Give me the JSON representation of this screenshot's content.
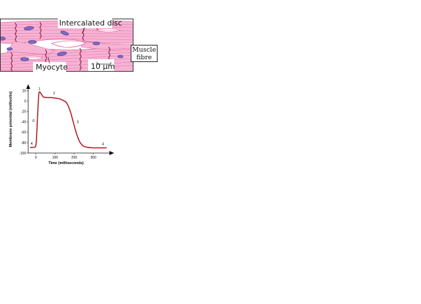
{
  "diagram": {
    "labels": {
      "intercalated_disc": "Intercalated disc",
      "myocyte": "Myocyte",
      "scale_bar": "10 µm",
      "muscle_fibre_line1": "Muscle",
      "muscle_fibre_line2": "fibre"
    },
    "colors": {
      "tissue_fill": "#f6b3d3",
      "fibril_lines": "#e2649f",
      "disc_lines": "#8e1b47",
      "nucleus": "#7f69c4",
      "nucleus_outline": "#4b3c8c",
      "border": "#333333"
    }
  },
  "chart_data": {
    "type": "line",
    "title": "",
    "xlabel": "Time (milliseconds)",
    "ylabel": "Membrane potential (millivolts)",
    "xlim": [
      -40,
      380
    ],
    "ylim": [
      -100,
      25
    ],
    "xticks": [
      0,
      100,
      200,
      300
    ],
    "yticks": [
      20,
      0,
      -20,
      -40,
      -60,
      -80,
      -100
    ],
    "grid": false,
    "line_color": "#b0151e",
    "series": [
      {
        "name": "",
        "x": [
          -30,
          -10,
          0,
          5,
          10,
          15,
          20,
          30,
          40,
          60,
          80,
          100,
          120,
          140,
          150,
          160,
          170,
          180,
          190,
          200,
          210,
          220,
          230,
          240,
          250,
          270,
          300,
          330,
          370
        ],
        "y": [
          -89,
          -89,
          -85,
          -60,
          -20,
          12,
          18,
          13,
          8,
          7,
          7,
          6,
          5,
          2,
          0,
          -3,
          -10,
          -20,
          -33,
          -47,
          -60,
          -71,
          -79,
          -84,
          -87,
          -89,
          -90,
          -90,
          -90
        ]
      }
    ],
    "phase_labels": [
      {
        "text": "0",
        "x": -12,
        "y": -40
      },
      {
        "text": "1",
        "x": 18,
        "y": 22
      },
      {
        "text": "2",
        "x": 95,
        "y": 13
      },
      {
        "text": "3",
        "x": 218,
        "y": -42
      },
      {
        "text": "4",
        "x": -22,
        "y": -84
      },
      {
        "text": "4",
        "x": 350,
        "y": -85
      }
    ]
  }
}
